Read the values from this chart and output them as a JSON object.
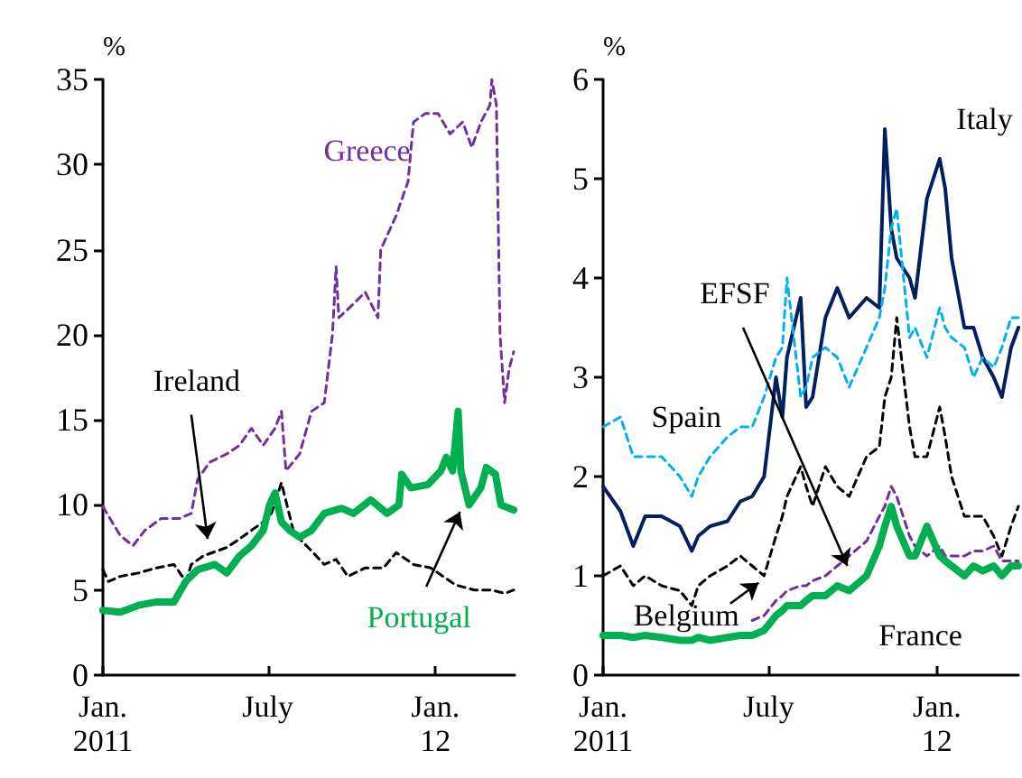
{
  "chart_data": [
    {
      "type": "line",
      "ylabel": "%",
      "xlim": [
        "2011-01-01",
        "2012-03-28"
      ],
      "xticks": [
        {
          "value": "2011-01-01",
          "label": "Jan.\n2011"
        },
        {
          "value": "2011-07-01",
          "label": "July"
        },
        {
          "value": "2012-01-01",
          "label": "Jan.\n12"
        }
      ],
      "ylim": [
        0,
        35
      ],
      "yticks": [
        0,
        5,
        10,
        15,
        20,
        25,
        30,
        35
      ],
      "marker": "none",
      "series": [
        {
          "name": "Greece",
          "color": "#7030a0",
          "line_style": "dashed",
          "x": [
            "2011-01-01",
            "2011-01-20",
            "2011-02-03",
            "2011-02-16",
            "2011-03-06",
            "2011-03-26",
            "2011-04-08",
            "2011-04-15",
            "2011-04-28",
            "2011-05-17",
            "2011-05-31",
            "2011-06-13",
            "2011-06-26",
            "2011-07-09",
            "2011-07-16",
            "2011-07-21",
            "2011-08-05",
            "2011-08-18",
            "2011-09-01",
            "2011-09-10",
            "2011-09-14",
            "2011-09-17",
            "2011-09-27",
            "2011-10-16",
            "2011-10-30",
            "2011-11-02",
            "2011-11-19",
            "2011-12-02",
            "2011-12-08",
            "2011-12-21",
            "2012-01-04",
            "2012-01-17",
            "2012-01-31",
            "2012-02-10",
            "2012-02-20",
            "2012-03-01",
            "2012-03-03",
            "2012-03-08",
            "2012-03-12",
            "2012-03-17",
            "2012-03-22",
            "2012-03-27"
          ],
          "values": [
            9.9,
            8.2,
            7.6,
            8.5,
            9.2,
            9.2,
            9.5,
            11.5,
            12.5,
            13,
            13.5,
            14.5,
            13.5,
            14.5,
            15.5,
            12,
            13,
            15.5,
            16,
            20,
            24,
            21,
            21.5,
            22.5,
            21,
            25,
            27,
            29,
            32.5,
            33,
            33,
            31.8,
            32.5,
            31,
            32.5,
            33.5,
            35,
            33.5,
            20,
            16,
            18,
            19
          ]
        },
        {
          "name": "Ireland",
          "color": "#000000",
          "line_style": "dashed",
          "x": [
            "2011-01-01",
            "2011-01-07",
            "2011-01-20",
            "2011-02-09",
            "2011-03-01",
            "2011-03-20",
            "2011-04-02",
            "2011-04-08",
            "2011-04-21",
            "2011-05-17",
            "2011-05-31",
            "2011-06-26",
            "2011-07-05",
            "2011-07-16",
            "2011-07-29",
            "2011-08-05",
            "2011-08-18",
            "2011-09-01",
            "2011-09-14",
            "2011-09-27",
            "2011-10-16",
            "2011-11-05",
            "2011-11-19",
            "2011-12-08",
            "2011-12-27",
            "2012-01-23",
            "2012-02-13",
            "2012-03-03",
            "2012-03-17",
            "2012-03-27"
          ],
          "values": [
            6.2,
            5.5,
            5.8,
            6.0,
            6.3,
            6.5,
            5.5,
            6.5,
            7.0,
            7.5,
            8.0,
            9.0,
            9.5,
            11.3,
            8.5,
            8.0,
            7.3,
            6.5,
            6.8,
            5.8,
            6.3,
            6.3,
            7.2,
            6.5,
            6.3,
            5.3,
            5.0,
            5.0,
            4.8,
            5.0
          ]
        },
        {
          "name": "Portugal",
          "color": "#00b050",
          "line_style": "solid",
          "x": [
            "2011-01-01",
            "2011-01-20",
            "2011-02-09",
            "2011-03-01",
            "2011-03-20",
            "2011-04-02",
            "2011-04-15",
            "2011-05-04",
            "2011-05-17",
            "2011-05-31",
            "2011-06-13",
            "2011-06-26",
            "2011-07-03",
            "2011-07-09",
            "2011-07-16",
            "2011-07-25",
            "2011-08-05",
            "2011-08-18",
            "2011-09-01",
            "2011-09-20",
            "2011-10-03",
            "2011-10-22",
            "2011-11-09",
            "2011-11-22",
            "2011-11-25",
            "2011-12-05",
            "2011-12-24",
            "2012-01-07",
            "2012-01-13",
            "2012-01-20",
            "2012-01-26",
            "2012-01-29",
            "2012-02-07",
            "2012-02-20",
            "2012-02-26",
            "2012-03-07",
            "2012-03-13",
            "2012-03-27"
          ],
          "values": [
            3.8,
            3.7,
            4.1,
            4.3,
            4.3,
            5.5,
            6.2,
            6.5,
            6.0,
            7.0,
            7.6,
            8.5,
            10.0,
            10.7,
            9.0,
            8.5,
            8.1,
            8.5,
            9.5,
            9.8,
            9.5,
            10.3,
            9.5,
            10.0,
            11.8,
            11.0,
            11.2,
            12.0,
            12.8,
            12.0,
            15.5,
            12.0,
            10.0,
            11.0,
            12.2,
            11.8,
            10.0,
            9.7
          ]
        }
      ]
    },
    {
      "type": "line",
      "ylabel": "%",
      "xlim": [
        "2011-01-01",
        "2012-03-30"
      ],
      "xticks": [
        {
          "value": "2011-01-01",
          "label": "Jan.\n2011"
        },
        {
          "value": "2011-07-01",
          "label": "July"
        },
        {
          "value": "2012-01-01",
          "label": "Jan.\n12"
        }
      ],
      "ylim": [
        0,
        6
      ],
      "yticks": [
        0,
        1,
        2,
        3,
        4,
        5,
        6
      ],
      "marker": "none",
      "x": [
        "2011-01-01",
        "2011-01-20",
        "2011-02-03",
        "2011-02-16",
        "2011-03-06",
        "2011-03-26",
        "2011-04-08",
        "2011-04-15",
        "2011-04-28",
        "2011-05-17",
        "2011-05-31",
        "2011-06-13",
        "2011-06-26",
        "2011-07-09",
        "2011-07-16",
        "2011-07-21",
        "2011-08-05",
        "2011-08-11",
        "2011-08-18",
        "2011-09-01",
        "2011-09-14",
        "2011-09-27",
        "2011-10-16",
        "2011-10-30",
        "2011-11-05",
        "2011-11-12",
        "2011-11-18",
        "2011-12-02",
        "2011-12-08",
        "2011-12-21",
        "2012-01-04",
        "2012-01-10",
        "2012-01-17",
        "2012-01-31",
        "2012-02-10",
        "2012-02-20",
        "2012-03-03",
        "2012-03-12",
        "2012-03-22",
        "2012-03-30"
      ],
      "series": [
        {
          "name": "Italy",
          "color": "#002060",
          "line_style": "solid",
          "values": [
            1.9,
            1.65,
            1.3,
            1.6,
            1.6,
            1.5,
            1.25,
            1.4,
            1.5,
            1.55,
            1.75,
            1.8,
            2.0,
            3.0,
            2.6,
            3.2,
            3.8,
            2.7,
            2.8,
            3.6,
            3.9,
            3.6,
            3.8,
            3.7,
            5.5,
            4.5,
            4.2,
            4.0,
            3.8,
            4.8,
            5.2,
            4.9,
            4.2,
            3.5,
            3.5,
            3.2,
            3.0,
            2.8,
            3.3,
            3.5
          ]
        },
        {
          "name": "Spain",
          "color": "#00b0f0",
          "line_style": "dashed",
          "values": [
            2.5,
            2.6,
            2.2,
            2.2,
            2.2,
            2.0,
            1.8,
            2.0,
            2.2,
            2.4,
            2.5,
            2.5,
            2.8,
            3.2,
            3.3,
            4.0,
            2.8,
            2.9,
            3.2,
            3.3,
            3.2,
            2.9,
            3.3,
            3.6,
            3.9,
            4.5,
            4.7,
            3.4,
            3.5,
            3.2,
            3.7,
            3.5,
            3.4,
            3.3,
            3.0,
            3.2,
            3.1,
            3.3,
            3.6,
            3.6
          ]
        },
        {
          "name": "Belgium",
          "color": "#000000",
          "line_style": "dashed",
          "values": [
            1.0,
            1.1,
            0.9,
            1.0,
            0.9,
            0.85,
            0.7,
            0.9,
            1.0,
            1.1,
            1.2,
            1.1,
            1.0,
            1.4,
            1.6,
            1.8,
            2.1,
            1.9,
            1.7,
            2.1,
            1.9,
            1.8,
            2.2,
            2.3,
            2.8,
            3.0,
            3.6,
            2.5,
            2.2,
            2.2,
            2.7,
            2.4,
            2.0,
            1.6,
            1.6,
            1.6,
            1.4,
            1.2,
            1.5,
            1.7
          ]
        },
        {
          "name": "EFSF",
          "color": "#7030a0",
          "line_style": "dashed",
          "values": [
            null,
            null,
            null,
            null,
            null,
            null,
            null,
            null,
            null,
            null,
            null,
            0.55,
            0.6,
            0.75,
            0.8,
            0.85,
            0.9,
            0.9,
            0.95,
            1.0,
            1.1,
            1.2,
            1.35,
            1.6,
            1.7,
            1.9,
            1.8,
            1.4,
            1.3,
            1.2,
            1.3,
            1.2,
            1.2,
            1.2,
            1.25,
            1.25,
            1.3,
            1.15,
            1.15,
            1.15
          ]
        },
        {
          "name": "France",
          "color": "#00b050",
          "line_style": "solid",
          "values": [
            0.4,
            0.4,
            0.38,
            0.4,
            0.38,
            0.35,
            0.35,
            0.38,
            0.35,
            0.38,
            0.4,
            0.4,
            0.45,
            0.6,
            0.65,
            0.7,
            0.7,
            0.75,
            0.8,
            0.8,
            0.9,
            0.85,
            1.0,
            1.3,
            1.5,
            1.7,
            1.5,
            1.2,
            1.2,
            1.5,
            1.2,
            1.15,
            1.1,
            1.0,
            1.1,
            1.05,
            1.1,
            1.0,
            1.1,
            1.1
          ]
        }
      ]
    }
  ]
}
